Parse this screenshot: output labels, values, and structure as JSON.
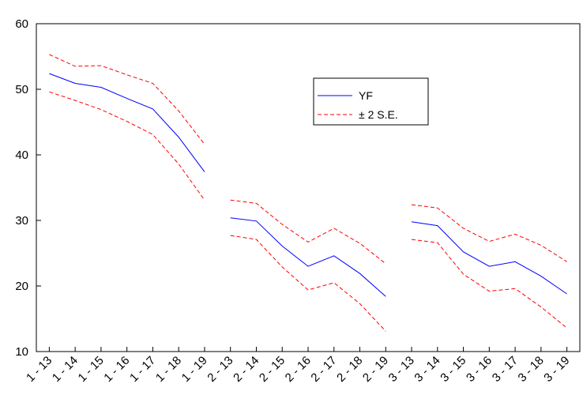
{
  "chart_data": {
    "type": "line",
    "title": "",
    "xlabel": "",
    "ylabel": "",
    "ylim": [
      10,
      60
    ],
    "yticks": [
      10,
      20,
      30,
      40,
      50,
      60
    ],
    "grid": false,
    "legend_placement": "upper-center-right",
    "categories": [
      "1 - 13",
      "1 - 14",
      "1 - 15",
      "1 - 16",
      "1 - 17",
      "1 - 18",
      "1 - 19",
      "2 - 13",
      "2 - 14",
      "2 - 15",
      "2 - 16",
      "2 - 17",
      "2 - 18",
      "2 - 19",
      "3 - 13",
      "3 - 14",
      "3 - 15",
      "3 - 16",
      "3 - 17",
      "3 - 18",
      "3 - 19"
    ],
    "panels": [
      {
        "id": "1",
        "categories": [
          "1 - 13",
          "1 - 14",
          "1 - 15",
          "1 - 16",
          "1 - 17",
          "1 - 18",
          "1 - 19"
        ],
        "series": [
          {
            "name": "YF",
            "values": [
              52.4,
              50.9,
              50.3,
              48.6,
              47.0,
              42.7,
              37.4
            ]
          },
          {
            "name": "± 2 S.E.",
            "role": "upper",
            "values": [
              55.3,
              53.5,
              53.6,
              52.2,
              50.9,
              46.7,
              41.6
            ]
          },
          {
            "name": "± 2 S.E.",
            "role": "lower",
            "values": [
              49.6,
              48.3,
              46.9,
              45.1,
              43.1,
              38.6,
              33.1
            ]
          }
        ]
      },
      {
        "id": "2",
        "categories": [
          "2 - 13",
          "2 - 14",
          "2 - 15",
          "2 - 16",
          "2 - 17",
          "2 - 18",
          "2 - 19"
        ],
        "series": [
          {
            "name": "YF",
            "values": [
              30.4,
              29.9,
              26.1,
              23.0,
              24.6,
              21.9,
              18.4
            ]
          },
          {
            "name": "± 2 S.E.",
            "role": "upper",
            "values": [
              33.1,
              32.6,
              29.4,
              26.7,
              28.8,
              26.5,
              23.4
            ]
          },
          {
            "name": "± 2 S.E.",
            "role": "lower",
            "values": [
              27.7,
              27.1,
              22.9,
              19.4,
              20.5,
              17.3,
              13.1
            ]
          }
        ]
      },
      {
        "id": "3",
        "categories": [
          "3 - 13",
          "3 - 14",
          "3 - 15",
          "3 - 16",
          "3 - 17",
          "3 - 18",
          "3 - 19"
        ],
        "series": [
          {
            "name": "YF",
            "values": [
              29.8,
              29.2,
              25.2,
              23.0,
              23.7,
              21.5,
              18.8
            ]
          },
          {
            "name": "± 2 S.E.",
            "role": "upper",
            "values": [
              32.4,
              31.9,
              28.8,
              26.8,
              27.9,
              26.2,
              23.7
            ]
          },
          {
            "name": "± 2 S.E.",
            "role": "lower",
            "values": [
              27.1,
              26.6,
              21.8,
              19.2,
              19.6,
              16.8,
              13.6
            ]
          }
        ]
      }
    ],
    "legend": [
      {
        "label": "YF",
        "color": "#0000ff",
        "style": "solid"
      },
      {
        "label": "± 2 S.E.",
        "color": "#ff0000",
        "style": "dashed"
      }
    ],
    "colors": {
      "forecast": "#0000ff",
      "band": "#ff0000",
      "axis": "#000000"
    }
  }
}
